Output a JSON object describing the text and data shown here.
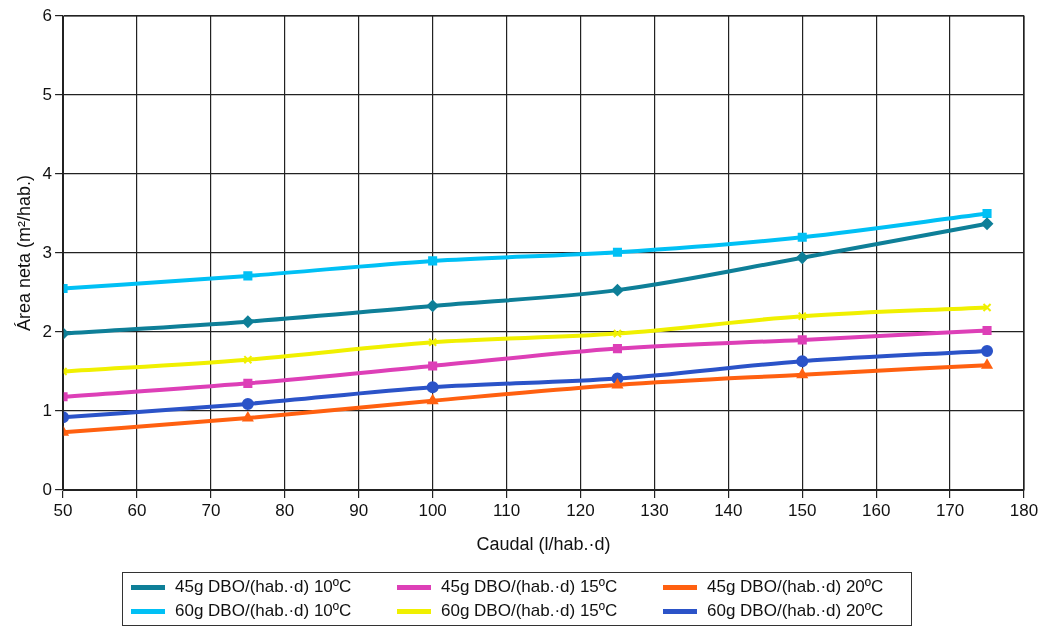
{
  "chart_data": {
    "type": "line",
    "xlabel": "Caudal (l/hab.·d)",
    "ylabel": "Área neta (m²/hab.)",
    "x": [
      50,
      75,
      100,
      125,
      150,
      175
    ],
    "xlim": [
      50,
      180
    ],
    "xticks": [
      50,
      60,
      70,
      80,
      90,
      100,
      110,
      120,
      130,
      140,
      150,
      160,
      170,
      180
    ],
    "ylim": [
      0,
      6
    ],
    "yticks": [
      0,
      1,
      2,
      3,
      4,
      5,
      6
    ],
    "grid": true,
    "legend": "bottom",
    "series": [
      {
        "name": "45g DBO/(hab.·d) 10ºC",
        "color": "#0e7f98",
        "marker": "diamond",
        "values": [
          1.98,
          2.13,
          2.33,
          2.53,
          2.94,
          3.37
        ]
      },
      {
        "name": "45g DBO/(hab.·d) 15ºC",
        "color": "#dd3fb7",
        "marker": "square",
        "values": [
          1.18,
          1.35,
          1.57,
          1.79,
          1.9,
          2.02
        ]
      },
      {
        "name": "45g DBO/(hab.·d) 20ºC",
        "color": "#ff6010",
        "marker": "triangle",
        "values": [
          0.73,
          0.91,
          1.13,
          1.33,
          1.46,
          1.58
        ]
      },
      {
        "name": "60g DBO/(hab.·d) 10ºC",
        "color": "#00c0f5",
        "marker": "square",
        "values": [
          2.55,
          2.71,
          2.9,
          3.01,
          3.2,
          3.5
        ]
      },
      {
        "name": "60g DBO/(hab.·d) 15ºC",
        "color": "#f0f000",
        "marker": "cross",
        "values": [
          1.5,
          1.65,
          1.87,
          1.98,
          2.2,
          2.31
        ]
      },
      {
        "name": "60g DBO/(hab.·d) 20ºC",
        "color": "#2b53c8",
        "marker": "circle",
        "values": [
          0.92,
          1.09,
          1.3,
          1.41,
          1.63,
          1.76
        ]
      }
    ]
  }
}
